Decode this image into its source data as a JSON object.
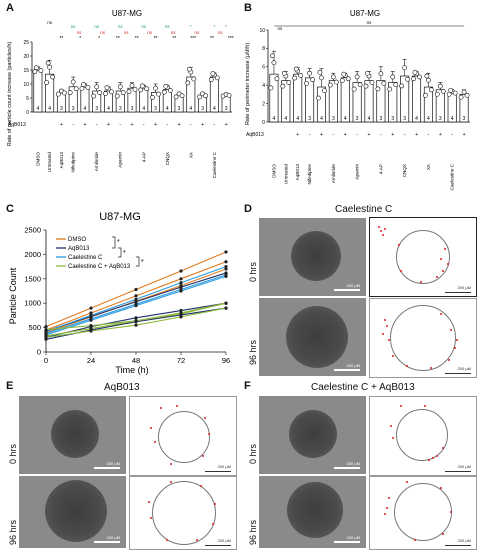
{
  "panels": {
    "A": {
      "letter": "A",
      "title": "U87-MG",
      "ylabel": "Rate of particle count increase (particles/h)",
      "treatment_row_label": "AqB013",
      "signs": [
        "",
        "",
        "+",
        "-",
        "+",
        "-",
        "+",
        "-",
        "+",
        "-",
        "+",
        "-",
        "+",
        "-",
        "+",
        "-",
        "+"
      ],
      "categories": [
        "DMSO",
        "Untreated",
        "AqB013",
        "Nifedipine",
        "",
        "Amiloride",
        "",
        "Apamin",
        "",
        "4-AP",
        "",
        "CNQX",
        "",
        "XA",
        "",
        "Caelestine C",
        ""
      ],
      "n": [
        "4",
        "4",
        "3",
        "3",
        "4",
        "3",
        "4",
        "3",
        "3",
        "4",
        "3",
        "4",
        "3",
        "4",
        "3",
        "4",
        "3"
      ],
      "sig_top": [
        "ns",
        "ns",
        "ns",
        "ns",
        "ns",
        "*",
        "*",
        "*"
      ],
      "sig_mid": [
        "ns",
        "ns",
        "ns",
        "ns",
        "ns",
        "ns",
        "ns"
      ],
      "sig_low": [
        "**",
        "*",
        "*",
        "**",
        "**",
        "**",
        "**",
        "***",
        "**",
        "***"
      ]
    },
    "B": {
      "letter": "B",
      "title": "U87-MG",
      "ylabel": "Rate of perimeter increase (µM/h)",
      "treatment_row_label": "AqB013",
      "categories": [
        "DMSO",
        "Untreated",
        "AqB013",
        "Nifedipine",
        "",
        "Amiloride",
        "",
        "Apamin",
        "",
        "4-AP",
        "",
        "CNQX",
        "",
        "XA",
        "",
        "Caelestine C",
        ""
      ],
      "n": [
        "4",
        "4",
        "4",
        "3",
        "4",
        "3",
        "4",
        "3",
        "4",
        "3",
        "3",
        "3",
        "4",
        "4",
        "3",
        "4",
        "3"
      ],
      "sig": [
        "ns",
        "ns"
      ]
    },
    "C": {
      "letter": "C",
      "title": "U87-MG",
      "xlabel": "Time (h)",
      "ylabel": "Particle Count",
      "legend": [
        "DMSO",
        "AqB013",
        "Caelestine C",
        "Caelestine C + AqB013"
      ],
      "sig": [
        "*",
        "*",
        "*"
      ]
    },
    "D": {
      "letter": "D",
      "title": "Caelestine C",
      "rows": [
        "0 hrs",
        "96 hrs"
      ],
      "scale": "200 µM"
    },
    "E": {
      "letter": "E",
      "title": "AqB013",
      "rows": [
        "0 hrs",
        "96 hrs"
      ],
      "scale": "200 µM"
    },
    "F": {
      "letter": "F",
      "title": "Caelestine C + AqB013",
      "rows": [
        "0 hrs",
        "96 hrs"
      ],
      "scale": "200 µM"
    }
  },
  "colors": {
    "DMSO": "#e07a1f",
    "AqB013": "#1f2f6b",
    "Caelestine C": "#2a9be0",
    "Caelestine C + AqB013": "#8db83a",
    "ns_teal": "#1a9a8a",
    "ns_red": "#d02a2a",
    "dots": "#d22222"
  },
  "chart_data": [
    {
      "type": "bar",
      "panel": "A",
      "title": "U87-MG",
      "ylabel": "Rate of particle count increase (particles/h)",
      "categories": [
        "DMSO",
        "Untreated",
        "AqB013",
        "Nifedipine",
        "Nifedipine + AqB013",
        "Amiloride",
        "Amiloride + AqB013",
        "Apamin",
        "Apamin + AqB013",
        "4-AP",
        "4-AP + AqB013",
        "CNQX",
        "CNQX + AqB013",
        "XA",
        "XA + AqB013",
        "Caelestine C",
        "Caelestine C + AqB013"
      ],
      "values": [
        15.0,
        13.5,
        7.0,
        9.0,
        9.0,
        7.5,
        7.5,
        7.5,
        8.5,
        8.5,
        7.0,
        8.0,
        6.0,
        12.5,
        6.0,
        12.5,
        6.0
      ],
      "errors": [
        1.0,
        5.0,
        1.0,
        3.5,
        1.0,
        3.0,
        1.5,
        3.0,
        2.0,
        1.0,
        3.0,
        1.5,
        1.0,
        3.5,
        1.0,
        1.5,
        0.5
      ],
      "ylim": [
        0,
        25
      ],
      "yticks": [
        0,
        5,
        10,
        15,
        20,
        25
      ],
      "grid": false
    },
    {
      "type": "bar",
      "panel": "B",
      "title": "U87-MG",
      "ylabel": "Rate of perimeter increase (µM/h)",
      "categories": [
        "DMSO",
        "Untreated",
        "AqB013",
        "Nifedipine",
        "Nifedipine + AqB013",
        "Amiloride",
        "Amiloride + AqB013",
        "Apamin",
        "Apamin + AqB013",
        "4-AP",
        "4-AP + AqB013",
        "CNQX",
        "CNQX + AqB013",
        "XA",
        "XA + AqB013",
        "Caelestine C",
        "Caelestine C + AqB013"
      ],
      "values": [
        5.2,
        4.5,
        5.2,
        4.8,
        3.8,
        4.5,
        4.8,
        4.3,
        4.5,
        4.5,
        4.3,
        5.0,
        5.0,
        3.8,
        3.5,
        3.2,
        3.0
      ],
      "errors": [
        2.5,
        1.0,
        0.7,
        1.0,
        2.0,
        0.8,
        0.5,
        1.2,
        1.0,
        1.5,
        1.2,
        1.8,
        0.5,
        1.5,
        0.8,
        0.3,
        0.5
      ],
      "ylim": [
        0,
        10
      ],
      "yticks": [
        0,
        2,
        4,
        6,
        8,
        10
      ],
      "grid": false
    },
    {
      "type": "line",
      "panel": "C",
      "title": "U87-MG",
      "xlabel": "Time (h)",
      "ylabel": "Particle Count",
      "x": [
        0,
        24,
        48,
        72,
        96
      ],
      "xlim": [
        0,
        96
      ],
      "ylim": [
        0,
        2500
      ],
      "yticks": [
        0,
        500,
        1000,
        1500,
        2000,
        2500
      ],
      "legend": "top-left",
      "series": [
        {
          "name": "DMSO",
          "lines": [
            [
              520,
              900,
              1280,
              1660,
              2050
            ],
            [
              450,
              800,
              1150,
              1500,
              1850
            ],
            [
              400,
              720,
              1040,
              1360,
              1700
            ]
          ]
        },
        {
          "name": "AqB013",
          "lines": [
            [
              430,
              730,
              1030,
              1330,
              1620
            ],
            [
              300,
              520,
              700,
              850,
              1000
            ],
            [
              260,
              450,
              620,
              760,
              900
            ]
          ]
        },
        {
          "name": "Caelestine C",
          "lines": [
            [
              420,
              750,
              1080,
              1420,
              1750
            ],
            [
              380,
              680,
              980,
              1280,
              1580
            ],
            [
              350,
              650,
              950,
              1250,
              1550
            ]
          ]
        },
        {
          "name": "Caelestine C + AqB013",
          "lines": [
            [
              460,
              540,
              640,
              800,
              1000
            ],
            [
              330,
              480,
              640,
              780,
              1000
            ],
            [
              300,
              430,
              550,
              720,
              900
            ]
          ]
        }
      ]
    }
  ]
}
